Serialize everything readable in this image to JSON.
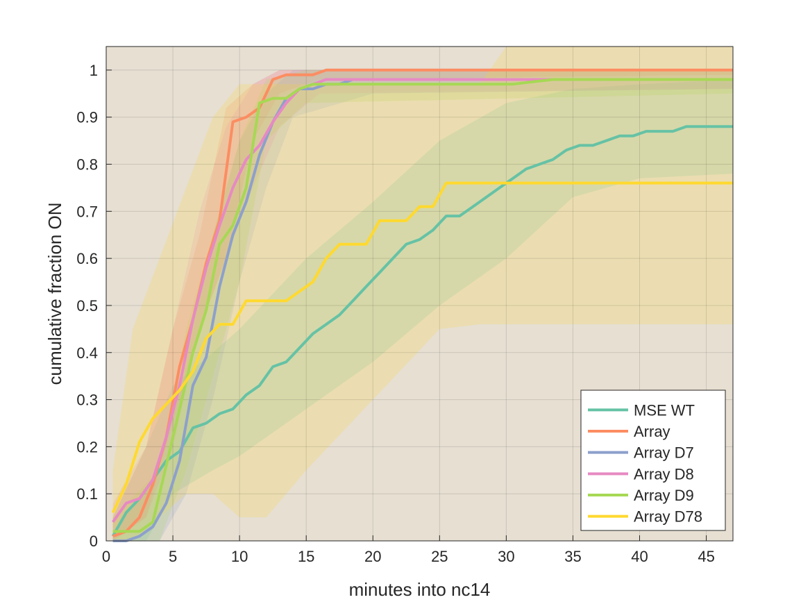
{
  "chart_data": {
    "type": "line",
    "title": "",
    "xlabel": "minutes into nc14",
    "ylabel": "cumulative fraction ON",
    "xlim": [
      0,
      47
    ],
    "ylim": [
      0,
      1.05
    ],
    "xticks": [
      0,
      5,
      10,
      15,
      20,
      25,
      30,
      35,
      40,
      45
    ],
    "yticks": [
      0,
      0.1,
      0.2,
      0.3,
      0.4,
      0.5,
      0.6,
      0.7,
      0.8,
      0.9,
      1
    ],
    "xtick_labels": [
      "0",
      "5",
      "10",
      "15",
      "20",
      "25",
      "30",
      "35",
      "40",
      "45"
    ],
    "ytick_labels": [
      "0",
      "0.1",
      "0.2",
      "0.3",
      "0.4",
      "0.5",
      "0.6",
      "0.7",
      "0.8",
      "0.9",
      "1"
    ],
    "grid": true,
    "legend_position": "bottom-right",
    "series": [
      {
        "name": "MSE WT",
        "color": "#66c2a5",
        "points": [
          [
            0.5,
            0.01
          ],
          [
            1.5,
            0.06
          ],
          [
            2.5,
            0.09
          ],
          [
            3.5,
            0.13
          ],
          [
            4.5,
            0.17
          ],
          [
            5.5,
            0.19
          ],
          [
            6.5,
            0.24
          ],
          [
            7.5,
            0.25
          ],
          [
            8.5,
            0.27
          ],
          [
            9.5,
            0.28
          ],
          [
            10.5,
            0.31
          ],
          [
            11.5,
            0.33
          ],
          [
            12.5,
            0.37
          ],
          [
            13.5,
            0.38
          ],
          [
            14.5,
            0.41
          ],
          [
            15.5,
            0.44
          ],
          [
            16.5,
            0.46
          ],
          [
            17.5,
            0.48
          ],
          [
            18.5,
            0.51
          ],
          [
            19.5,
            0.54
          ],
          [
            20.5,
            0.57
          ],
          [
            21.5,
            0.6
          ],
          [
            22.5,
            0.63
          ],
          [
            23.5,
            0.64
          ],
          [
            24.5,
            0.66
          ],
          [
            25.5,
            0.69
          ],
          [
            26.5,
            0.69
          ],
          [
            27.5,
            0.71
          ],
          [
            28.5,
            0.73
          ],
          [
            29.5,
            0.75
          ],
          [
            30.5,
            0.77
          ],
          [
            31.5,
            0.79
          ],
          [
            32.5,
            0.8
          ],
          [
            33.5,
            0.81
          ],
          [
            34.5,
            0.83
          ],
          [
            35.5,
            0.84
          ],
          [
            36.5,
            0.84
          ],
          [
            37.5,
            0.85
          ],
          [
            38.5,
            0.86
          ],
          [
            39.5,
            0.86
          ],
          [
            40.5,
            0.87
          ],
          [
            41.5,
            0.87
          ],
          [
            42.5,
            0.87
          ],
          [
            43.5,
            0.88
          ],
          [
            47,
            0.88
          ]
        ],
        "band": [
          [
            0.5,
            0,
            0.05
          ],
          [
            3,
            0,
            0.2
          ],
          [
            5,
            0.1,
            0.33
          ],
          [
            8,
            0.15,
            0.4
          ],
          [
            10,
            0.18,
            0.45
          ],
          [
            15,
            0.28,
            0.6
          ],
          [
            20,
            0.38,
            0.72
          ],
          [
            25,
            0.5,
            0.85
          ],
          [
            30,
            0.6,
            0.93
          ],
          [
            35,
            0.73,
            0.96
          ],
          [
            40,
            0.77,
            0.97
          ],
          [
            47,
            0.78,
            0.98
          ]
        ]
      },
      {
        "name": "Array",
        "color": "#fc8d62",
        "points": [
          [
            0.5,
            0.01
          ],
          [
            1.5,
            0.02
          ],
          [
            2.5,
            0.05
          ],
          [
            3.5,
            0.12
          ],
          [
            4.5,
            0.22
          ],
          [
            5.5,
            0.37
          ],
          [
            6.5,
            0.47
          ],
          [
            7.5,
            0.59
          ],
          [
            8.5,
            0.68
          ],
          [
            9.5,
            0.89
          ],
          [
            10.5,
            0.9
          ],
          [
            11.5,
            0.92
          ],
          [
            12.5,
            0.98
          ],
          [
            13.5,
            0.99
          ],
          [
            14.5,
            0.99
          ],
          [
            15.5,
            0.99
          ],
          [
            16.5,
            1
          ],
          [
            47,
            1
          ]
        ],
        "band": [
          [
            0.5,
            0,
            0.05
          ],
          [
            3,
            0.05,
            0.2
          ],
          [
            5,
            0.25,
            0.45
          ],
          [
            7,
            0.45,
            0.65
          ],
          [
            9,
            0.6,
            0.92
          ],
          [
            11,
            0.85,
            0.97
          ],
          [
            13,
            0.95,
            1.0
          ],
          [
            16,
            0.98,
            1.0
          ],
          [
            47,
            0.99,
            1.0
          ]
        ]
      },
      {
        "name": "Array D7",
        "color": "#8da0cb",
        "points": [
          [
            0.5,
            0
          ],
          [
            1.5,
            0
          ],
          [
            2.5,
            0.01
          ],
          [
            3.5,
            0.03
          ],
          [
            4.5,
            0.08
          ],
          [
            5.5,
            0.17
          ],
          [
            6.5,
            0.33
          ],
          [
            7.5,
            0.39
          ],
          [
            8.5,
            0.54
          ],
          [
            9.5,
            0.65
          ],
          [
            10.5,
            0.72
          ],
          [
            11.5,
            0.82
          ],
          [
            12.5,
            0.89
          ],
          [
            13.5,
            0.94
          ],
          [
            14.5,
            0.96
          ],
          [
            15.5,
            0.96
          ],
          [
            16.5,
            0.97
          ],
          [
            17.5,
            0.97
          ],
          [
            18.5,
            0.98
          ],
          [
            47,
            0.98
          ]
        ],
        "band": [
          [
            0.5,
            0,
            0.02
          ],
          [
            4,
            0,
            0.15
          ],
          [
            6,
            0.1,
            0.4
          ],
          [
            8,
            0.3,
            0.65
          ],
          [
            10,
            0.55,
            0.85
          ],
          [
            12,
            0.75,
            0.95
          ],
          [
            14,
            0.9,
            1.0
          ],
          [
            20,
            0.95,
            1.0
          ],
          [
            47,
            0.96,
            1.0
          ]
        ]
      },
      {
        "name": "Array D8",
        "color": "#e78ac3",
        "points": [
          [
            0.5,
            0.04
          ],
          [
            1.5,
            0.08
          ],
          [
            2.5,
            0.09
          ],
          [
            3.5,
            0.13
          ],
          [
            4.5,
            0.22
          ],
          [
            5.5,
            0.33
          ],
          [
            6.5,
            0.47
          ],
          [
            7.5,
            0.58
          ],
          [
            8.5,
            0.67
          ],
          [
            9.5,
            0.75
          ],
          [
            10.5,
            0.81
          ],
          [
            11.5,
            0.84
          ],
          [
            12.5,
            0.89
          ],
          [
            13.5,
            0.93
          ],
          [
            14.5,
            0.96
          ],
          [
            15.5,
            0.97
          ],
          [
            16.5,
            0.98
          ],
          [
            17.5,
            0.98
          ],
          [
            47,
            0.98
          ]
        ],
        "band": [
          [
            0.5,
            0,
            0.08
          ],
          [
            3,
            0.05,
            0.2
          ],
          [
            5,
            0.2,
            0.45
          ],
          [
            7,
            0.45,
            0.7
          ],
          [
            9,
            0.6,
            0.88
          ],
          [
            11,
            0.75,
            0.97
          ],
          [
            13,
            0.88,
            1.0
          ],
          [
            16,
            0.95,
            1.0
          ],
          [
            47,
            0.96,
            1.0
          ]
        ]
      },
      {
        "name": "Array D9",
        "color": "#a6d854",
        "points": [
          [
            0.5,
            0.02
          ],
          [
            1.5,
            0.02
          ],
          [
            2.5,
            0.02
          ],
          [
            3.5,
            0.04
          ],
          [
            4.5,
            0.16
          ],
          [
            5.5,
            0.28
          ],
          [
            6.5,
            0.4
          ],
          [
            7.5,
            0.49
          ],
          [
            8.5,
            0.63
          ],
          [
            9.5,
            0.67
          ],
          [
            10.5,
            0.75
          ],
          [
            11.5,
            0.93
          ],
          [
            12.5,
            0.94
          ],
          [
            13.5,
            0.94
          ],
          [
            14.5,
            0.96
          ],
          [
            15.5,
            0.97
          ],
          [
            16.5,
            0.97
          ],
          [
            17.5,
            0.97
          ],
          [
            30.5,
            0.97
          ],
          [
            33.5,
            0.98
          ],
          [
            47,
            0.98
          ]
        ],
        "band": [
          [
            0.5,
            0,
            0.05
          ],
          [
            4,
            0,
            0.15
          ],
          [
            6,
            0.15,
            0.45
          ],
          [
            8,
            0.35,
            0.65
          ],
          [
            10,
            0.55,
            0.85
          ],
          [
            12,
            0.85,
            0.98
          ],
          [
            15,
            0.93,
            1.0
          ],
          [
            47,
            0.95,
            1.0
          ]
        ]
      },
      {
        "name": "Array D78",
        "color": "#ffd92f",
        "points": [
          [
            0.5,
            0.06
          ],
          [
            1.5,
            0.12
          ],
          [
            2.5,
            0.21
          ],
          [
            3.5,
            0.26
          ],
          [
            4.5,
            0.29
          ],
          [
            5.5,
            0.32
          ],
          [
            6.5,
            0.36
          ],
          [
            7.5,
            0.43
          ],
          [
            8.5,
            0.46
          ],
          [
            9.5,
            0.46
          ],
          [
            10.5,
            0.51
          ],
          [
            11.5,
            0.51
          ],
          [
            12.5,
            0.51
          ],
          [
            13.5,
            0.51
          ],
          [
            14.5,
            0.53
          ],
          [
            15.5,
            0.55
          ],
          [
            16.5,
            0.6
          ],
          [
            17.5,
            0.63
          ],
          [
            18.5,
            0.63
          ],
          [
            19.5,
            0.63
          ],
          [
            20.5,
            0.68
          ],
          [
            21.5,
            0.68
          ],
          [
            22.5,
            0.68
          ],
          [
            23.5,
            0.71
          ],
          [
            24.5,
            0.71
          ],
          [
            25.5,
            0.76
          ],
          [
            47,
            0.76
          ]
        ],
        "band": [
          [
            0.5,
            0,
            0.15
          ],
          [
            2,
            0,
            0.45
          ],
          [
            4,
            0.05,
            0.6
          ],
          [
            6,
            0.1,
            0.75
          ],
          [
            8,
            0.1,
            0.9
          ],
          [
            10,
            0.05,
            0.97
          ],
          [
            12,
            0.05,
            0.97
          ],
          [
            15,
            0.15,
            0.97
          ],
          [
            20,
            0.3,
            0.97
          ],
          [
            25,
            0.45,
            0.97
          ],
          [
            28,
            0.46,
            0.97
          ],
          [
            30,
            0.46,
            1.05
          ],
          [
            47,
            0.46,
            1.05
          ]
        ]
      }
    ]
  }
}
